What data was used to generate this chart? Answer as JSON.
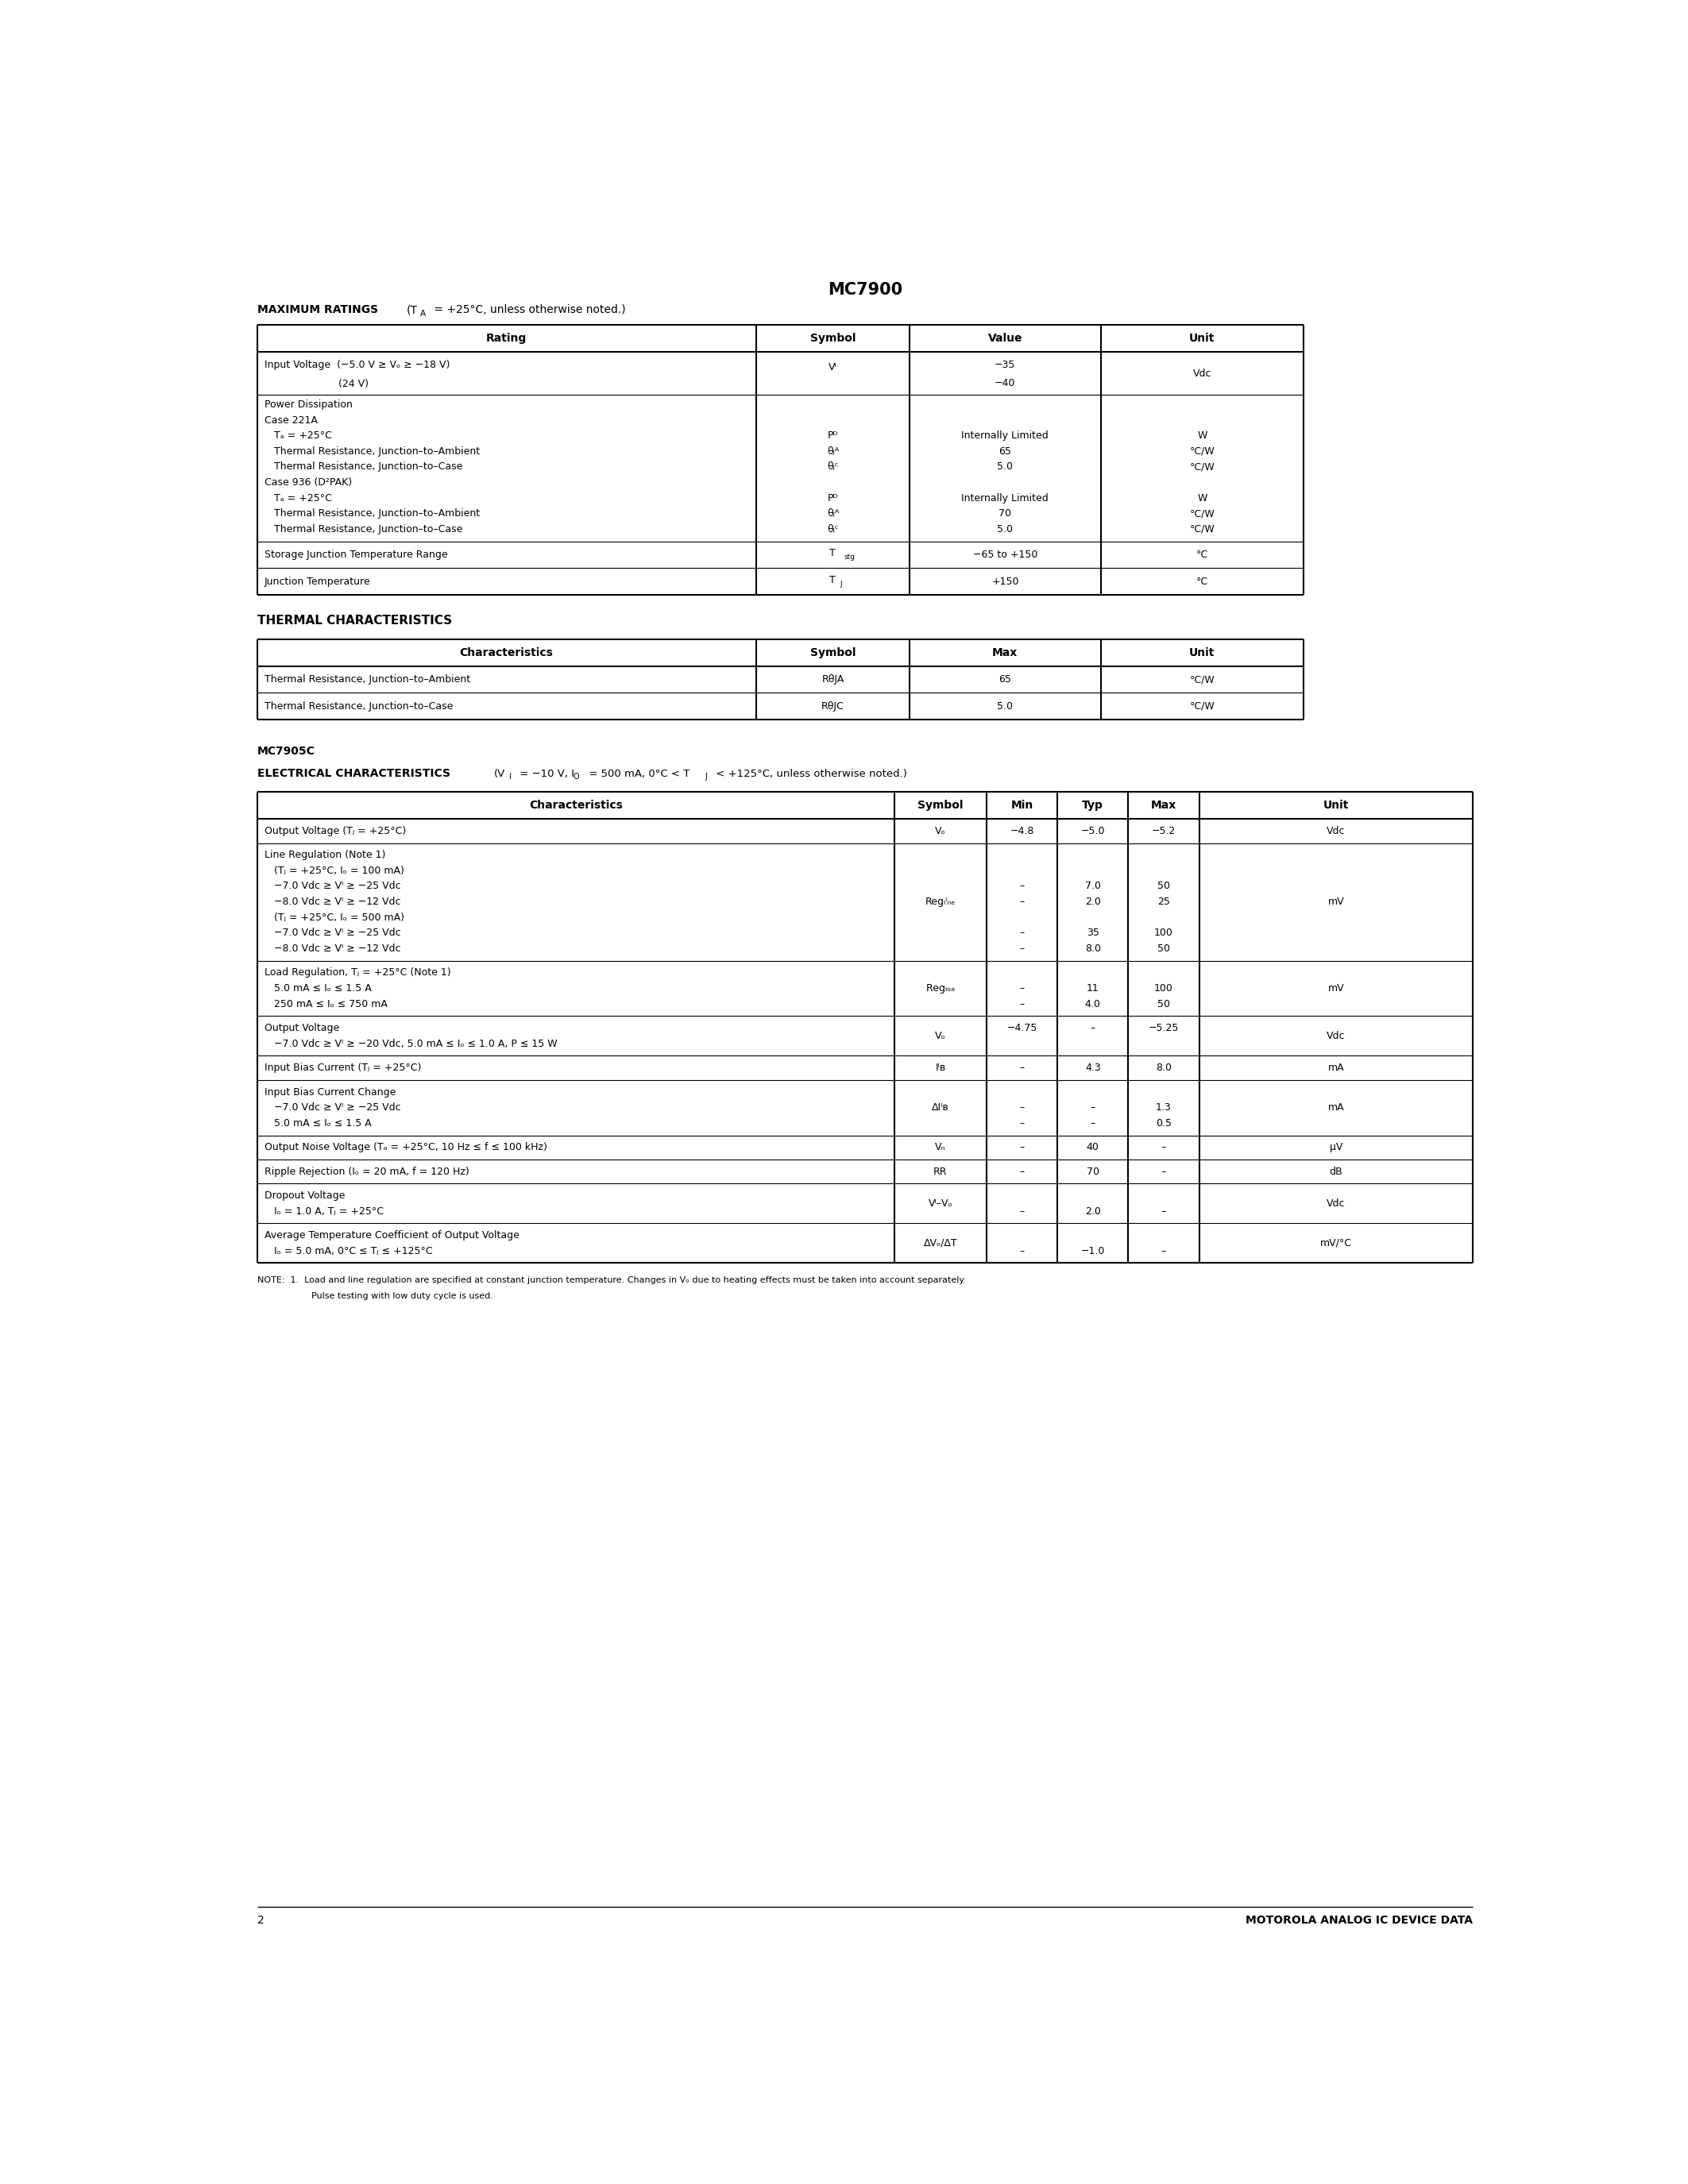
{
  "title": "MC7900",
  "page_number": "2",
  "footer_text": "MOTOROLA ANALOG IC DEVICE DATA",
  "background_color": "#ffffff",
  "section1_heading": "MAXIMUM RATINGS",
  "section1_heading_note": " (T",
  "section1_heading_note2": "A",
  "section1_heading_note3": " = +25°C, unless otherwise noted.)",
  "section2_heading": "THERMAL CHARACTERISTICS",
  "section3_heading1": "MC7905C",
  "section3_heading2": "ELECTRICAL CHARACTERISTICS",
  "section3_heading2_note": " (V",
  "section3_heading2_note2": "I",
  "section3_heading2_note3": " = −10 V, I",
  "section3_heading2_note4": "O",
  "section3_heading2_note5": " = 500 mA, 0°C < T",
  "section3_heading2_note6": "J",
  "section3_heading2_note7": " < +125°C, unless otherwise noted.)"
}
